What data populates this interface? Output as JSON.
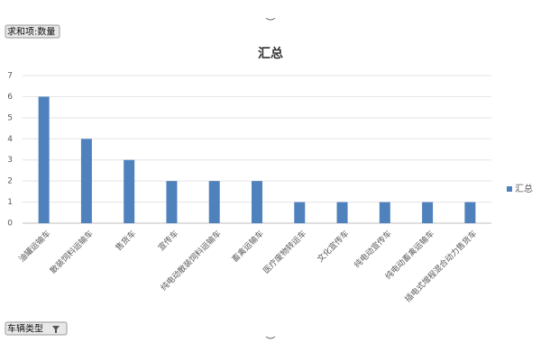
{
  "chart_data": {
    "type": "bar",
    "title": "汇总",
    "categories": [
      "油罐运输车",
      "散装饲料运输车",
      "售货车",
      "宣传车",
      "纯电动散装饲料运输车",
      "畜禽运输车",
      "医疗废物转运车",
      "文化宣传车",
      "纯电动宣传车",
      "纯电动畜禽运输车",
      "插电式增程混合动力售货车"
    ],
    "series": [
      {
        "name": "汇总",
        "color": "#4f81bd",
        "values": [
          6,
          4,
          3,
          2,
          2,
          2,
          1,
          1,
          1,
          1,
          1
        ]
      }
    ],
    "ylim": [
      0,
      7
    ],
    "yticks": [
      0,
      1,
      2,
      3,
      4,
      5,
      6,
      7
    ],
    "grid": true,
    "legend": "right"
  },
  "field_buttons": {
    "value_field": "求和项:数量",
    "axis_field": "车辆类型"
  }
}
